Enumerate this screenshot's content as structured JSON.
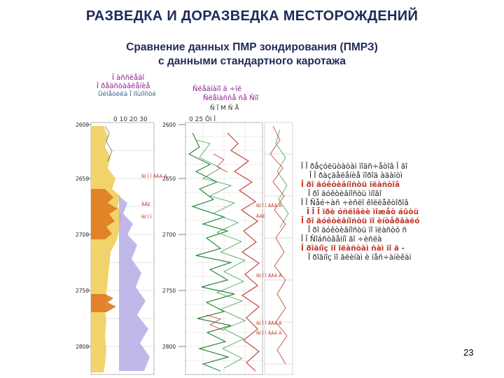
{
  "title": "РАЗВЕДКА И ДОРАЗВЕДКА МЕСТОРОЖДЕНИЙ",
  "subtitle_line1": "Сравнение данных ПМР зондирования (ПМРЗ)",
  "subtitle_line2": "с данными стандартного каротажа",
  "page_number": "23",
  "log_header": {
    "col1_title": "Ī àññëåäî",
    "col1_line2": "Ī ðåäñòàâëåíèå",
    "col1_line3": "Ūéíåòèêà Ī ìîùíîñòè",
    "col2_title": "Ñëåäíàïî ä ÷ïë",
    "col2_line2": "Ñëåìàññå ñå Ñïî",
    "scale_a": "Ñ Ī M  Ñ Å",
    "ticks_a": "0    10    20    30",
    "ticks_b": "0    25    Ōì Ī"
  },
  "depths_left": [
    "2600",
    "2650",
    "2700",
    "2750",
    "2800"
  ],
  "depths_mid": [
    "2600",
    "2650",
    "2700",
    "2750",
    "2800"
  ],
  "red_labels_mid": [
    "Ñî Ī Î ÅÅÄ Ā",
    "ÅÁÉ",
    "Ñî Ī Î ÅÅÄ Ā",
    "Ñî Ī Î ÅÅÄ Ā",
    "Ñî Ī Î ÅÅÄ Ā"
  ],
  "small_labels_left": [
    "Ñî Ī Î ÅÅÄ Ā",
    "ÅÅÉ",
    "Ñî Ī Î"
  ],
  "annotations": [
    {
      "text": "Ī Ī ðåçóëüòàòàì  ïîäñ÷åòîâ Ī ãî",
      "style": "dark"
    },
    {
      "text": "Ī Ī  ðàçäåëåíèå  ïîðîä àäàïòì",
      "style": "dark"
    },
    {
      "text": "Ī ðî äóêòèâíîñòü ïëàñòîâ",
      "style": "red"
    },
    {
      "text": "Ī ðî äóêòèâíîñòü ìíîãî",
      "style": "dark"
    },
    {
      "text": "Ī Ī  Ñåé÷àñ ÷èñëî êîëëåêòîðîâ",
      "style": "dark"
    },
    {
      "text": "Ī Ī Ī  ïðè óñëîâèè ìîæåò áûòü",
      "style": "red"
    },
    {
      "text": "Ī ðî äóêòèâíîñòü  ïî èíòåðâàëó",
      "style": "red"
    },
    {
      "text": "Ī ðî äóêòèâíîñòü  ïî ïëàñòó ñ",
      "style": "dark"
    },
    {
      "text": "Ī Ī  Ñîáñòâåííî ãî ÷èñëà",
      "style": "dark"
    },
    {
      "text": "Ī ðîãíîç  ïî ïëàñòàì  ñàì ïî ä -",
      "style": "red"
    },
    {
      "text": "Ī ðîãíîç  ïî ãëèíàì è ïåñ÷àíèêàì",
      "style": "dark"
    }
  ],
  "colors": {
    "title": "#1f2a5a",
    "gamma_fill": "#e8b830",
    "orange_fill": "#e07a20",
    "lilac_fill": "#9b8fd8",
    "green_curve": "#2e8b3e",
    "red_curve": "#c0392b",
    "annotation_red": "#c0392b"
  }
}
